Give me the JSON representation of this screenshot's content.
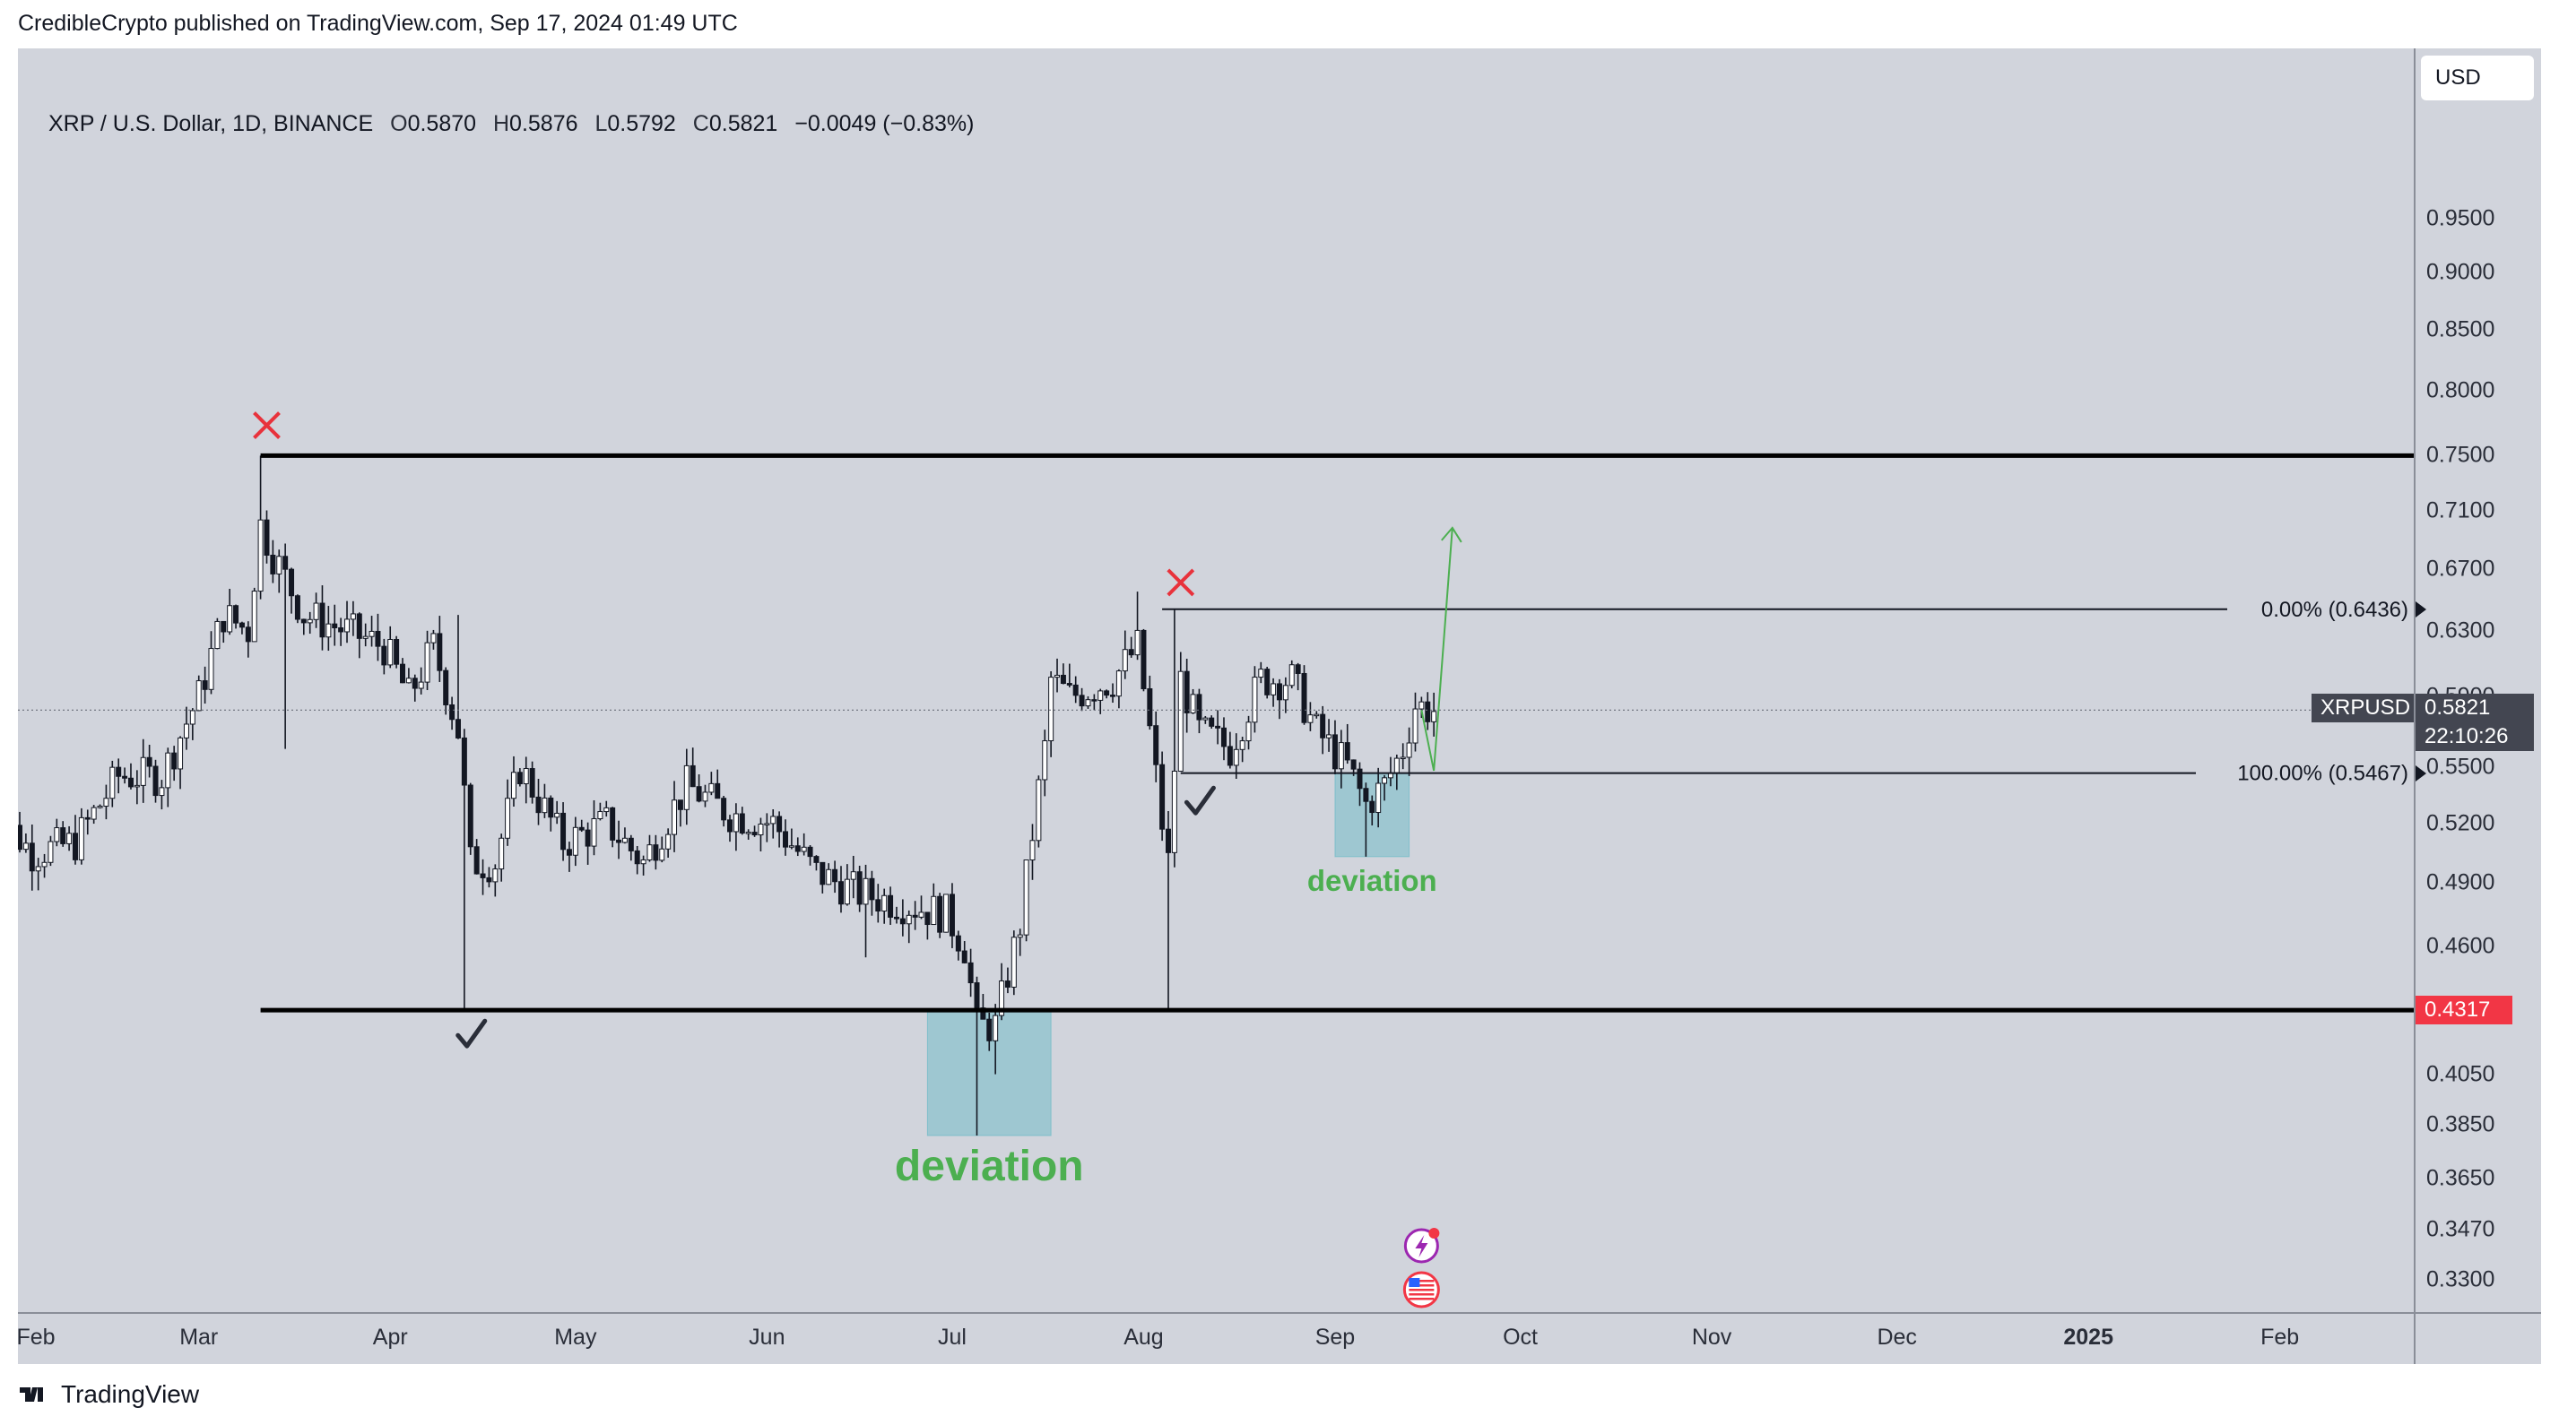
{
  "publisher_line": "CredibleCrypto published on TradingView.com, Sep 17, 2024 01:49 UTC",
  "legend": {
    "symbol": "XRP / U.S. Dollar, 1D, BINANCE",
    "open_label": "O",
    "open": "0.5870",
    "high_label": "H",
    "high": "0.5876",
    "low_label": "L",
    "low": "0.5792",
    "close_label": "C",
    "close": "0.5821",
    "change": "−0.0049 (−0.83%)"
  },
  "currency_button": "USD",
  "footer_brand": "TradingView",
  "colors": {
    "background": "#d1d4dc",
    "candle_up": "#ffffff",
    "candle_down": "#131722",
    "candle_wick": "#131722",
    "range_line": "#000000",
    "deviation_box": "#5fb7c4",
    "deviation_text": "#4caf50",
    "projection_arrow": "#4caf50",
    "x_mark": "#e8323c",
    "check_mark": "#2a2e39",
    "price_tag_bg": "#434651",
    "low_tag_bg": "#f23645"
  },
  "chart_data": {
    "type": "candlestick",
    "title": "XRP / U.S. Dollar, 1D, BINANCE",
    "price_scale": "log",
    "ylim": [
      0.323,
      1.08
    ],
    "x_ticks": [
      "Feb",
      "Mar",
      "Apr",
      "May",
      "Jun",
      "Jul",
      "Aug",
      "Sep",
      "Oct",
      "Nov",
      "Dec",
      "2025",
      "Feb"
    ],
    "x_tick_dates": [
      "2024-02-01",
      "2024-03-01",
      "2024-04-01",
      "2024-05-01",
      "2024-06-01",
      "2024-07-01",
      "2024-08-01",
      "2024-09-01",
      "2024-10-01",
      "2024-11-01",
      "2024-12-01",
      "2025-01-01",
      "2025-02-01"
    ],
    "y_ticks": [
      "0.9500",
      "0.9000",
      "0.8500",
      "0.8000",
      "0.7500",
      "0.7100",
      "0.6700",
      "0.6300",
      "0.5900",
      "0.5500",
      "0.5200",
      "0.4900",
      "0.4600",
      "0.4050",
      "0.3850",
      "0.3650",
      "0.3470",
      "0.3300"
    ],
    "current_price": {
      "symbol": "XRPUSD",
      "price": "0.5821",
      "countdown": "22:10:26"
    },
    "range_low_tag": "0.4317",
    "series_anchor_points": [
      {
        "date": "2024-01-27",
        "price": 0.53
      },
      {
        "date": "2024-02-03",
        "price": 0.505
      },
      {
        "date": "2024-02-10",
        "price": 0.51
      },
      {
        "date": "2024-02-17",
        "price": 0.545
      },
      {
        "date": "2024-02-24",
        "price": 0.545
      },
      {
        "date": "2024-03-01",
        "price": 0.59
      },
      {
        "date": "2024-03-05",
        "price": 0.64
      },
      {
        "date": "2024-03-09",
        "price": 0.63
      },
      {
        "date": "2024-03-11",
        "price": 0.7
      },
      {
        "date": "2024-03-13",
        "price": 0.68
      },
      {
        "date": "2024-03-18",
        "price": 0.64
      },
      {
        "date": "2024-03-25",
        "price": 0.63
      },
      {
        "date": "2024-03-31",
        "price": 0.62
      },
      {
        "date": "2024-04-04",
        "price": 0.59
      },
      {
        "date": "2024-04-08",
        "price": 0.62
      },
      {
        "date": "2024-04-12",
        "price": 0.57
      },
      {
        "date": "2024-04-14",
        "price": 0.5
      },
      {
        "date": "2024-04-18",
        "price": 0.5
      },
      {
        "date": "2024-04-22",
        "price": 0.55
      },
      {
        "date": "2024-04-29",
        "price": 0.51
      },
      {
        "date": "2024-05-06",
        "price": 0.52
      },
      {
        "date": "2024-05-12",
        "price": 0.5
      },
      {
        "date": "2024-05-19",
        "price": 0.54
      },
      {
        "date": "2024-05-26",
        "price": 0.525
      },
      {
        "date": "2024-06-02",
        "price": 0.52
      },
      {
        "date": "2024-06-09",
        "price": 0.495
      },
      {
        "date": "2024-06-16",
        "price": 0.485
      },
      {
        "date": "2024-06-23",
        "price": 0.48
      },
      {
        "date": "2024-06-30",
        "price": 0.475
      },
      {
        "date": "2024-07-03",
        "price": 0.46
      },
      {
        "date": "2024-07-05",
        "price": 0.425
      },
      {
        "date": "2024-07-08",
        "price": 0.425
      },
      {
        "date": "2024-07-12",
        "price": 0.47
      },
      {
        "date": "2024-07-16",
        "price": 0.56
      },
      {
        "date": "2024-07-17",
        "price": 0.6
      },
      {
        "date": "2024-07-20",
        "price": 0.59
      },
      {
        "date": "2024-07-27",
        "price": 0.6
      },
      {
        "date": "2024-07-31",
        "price": 0.62
      },
      {
        "date": "2024-08-02",
        "price": 0.57
      },
      {
        "date": "2024-08-04",
        "price": 0.52
      },
      {
        "date": "2024-08-05",
        "price": 0.5
      },
      {
        "date": "2024-08-07",
        "price": 0.6
      },
      {
        "date": "2024-08-10",
        "price": 0.57
      },
      {
        "date": "2024-08-15",
        "price": 0.56
      },
      {
        "date": "2024-08-20",
        "price": 0.6
      },
      {
        "date": "2024-08-25",
        "price": 0.6
      },
      {
        "date": "2024-08-29",
        "price": 0.57
      },
      {
        "date": "2024-09-03",
        "price": 0.55
      },
      {
        "date": "2024-09-06",
        "price": 0.53
      },
      {
        "date": "2024-09-09",
        "price": 0.54
      },
      {
        "date": "2024-09-12",
        "price": 0.56
      },
      {
        "date": "2024-09-14",
        "price": 0.585
      },
      {
        "date": "2024-09-17",
        "price": 0.582
      }
    ],
    "annotations": {
      "range_high": 0.75,
      "range_low": 0.4317,
      "range_start_date": "2024-03-11",
      "fib_levels": [
        {
          "label": "0.00% (0.6436)",
          "price": 0.6436,
          "start_date": "2024-08-04"
        },
        {
          "label": "100.00% (0.5467)",
          "price": 0.5467,
          "start_date": "2024-08-07"
        }
      ],
      "deviation_boxes": [
        {
          "label": "deviation",
          "date_from": "2024-06-27",
          "date_to": "2024-07-17",
          "price_high": 0.4317,
          "price_low": 0.381
        },
        {
          "label": "deviation",
          "date_from": "2024-09-01",
          "date_to": "2024-09-13",
          "price_high": 0.5467,
          "price_low": 0.503
        }
      ],
      "x_marks": [
        {
          "date": "2024-03-12",
          "price": 0.773
        },
        {
          "date": "2024-08-07",
          "price": 0.661
        }
      ],
      "check_marks": [
        {
          "date": "2024-04-14",
          "price": 0.421
        },
        {
          "date": "2024-08-10",
          "price": 0.531
        }
      ],
      "projection_arrow": [
        {
          "date": "2024-09-15",
          "price": 0.5821
        },
        {
          "date": "2024-09-17",
          "price": 0.548
        },
        {
          "date": "2024-09-20",
          "price": 0.698
        }
      ],
      "event_icons": [
        "lightning-icon",
        "us-flag-icon"
      ]
    }
  }
}
